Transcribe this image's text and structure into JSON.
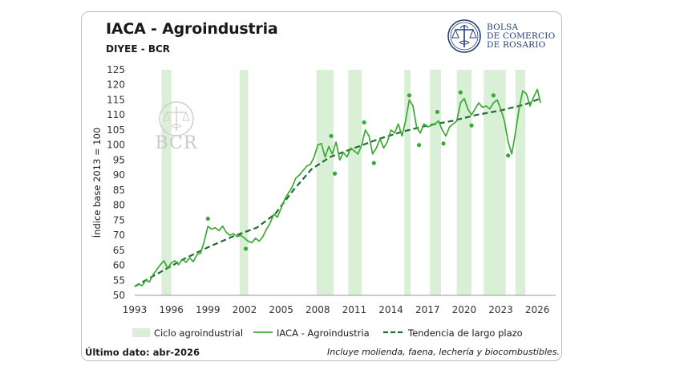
{
  "header": {
    "title": "IACA - Agroindustria",
    "subtitle": "DIYEE - BCR"
  },
  "logo": {
    "line1": "BOLSA",
    "line2": "DE COMERCIO",
    "line3": "DE ROSARIO",
    "color": "#1f3f73"
  },
  "watermark": "BCR",
  "footer": {
    "last_data": "Último dato: abr-2026",
    "note": "Incluye molienda, faena, lechería y biocombustibles."
  },
  "colors": {
    "line": "#3aaa35",
    "trend": "#1f6b34",
    "band": "#d9efd6",
    "dots": "#3aaa35"
  },
  "chart_data": {
    "type": "line",
    "title": "IACA - Agroindustria",
    "subtitle": "DIYEE - BCR",
    "ylabel": "Índice base 2013 = 100",
    "xlabel": "",
    "xlim": [
      1993,
      2027.5
    ],
    "ylim": [
      50,
      125
    ],
    "x_ticks": [
      1993,
      1996,
      1999,
      2002,
      2005,
      2008,
      2011,
      2014,
      2017,
      2020,
      2023,
      2026
    ],
    "y_ticks": [
      50,
      55,
      60,
      65,
      70,
      75,
      80,
      85,
      90,
      95,
      100,
      105,
      110,
      115,
      120,
      125
    ],
    "grid": false,
    "legend_position": "bottom",
    "legend": [
      "Ciclo agroindustrial",
      "IACA - Agroindustria",
      "Tendencia de largo plazo"
    ],
    "cycle_bands": [
      [
        1995.2,
        1996.0
      ],
      [
        2001.6,
        2002.3
      ],
      [
        2007.9,
        2009.3
      ],
      [
        2010.5,
        2011.6
      ],
      [
        2015.1,
        2015.6
      ],
      [
        2017.2,
        2018.1
      ],
      [
        2019.4,
        2020.6
      ],
      [
        2021.6,
        2023.4
      ],
      [
        2024.2,
        2025.0
      ]
    ],
    "series": [
      {
        "name": "IACA - Agroindustria",
        "x": [
          1993.0,
          1993.3,
          1993.6,
          1993.9,
          1994.2,
          1994.5,
          1994.8,
          1995.1,
          1995.4,
          1995.7,
          1996.0,
          1996.3,
          1996.6,
          1996.9,
          1997.2,
          1997.5,
          1997.8,
          1998.1,
          1998.4,
          1998.7,
          1999.0,
          1999.3,
          1999.6,
          1999.9,
          2000.2,
          2000.5,
          2000.8,
          2001.1,
          2001.4,
          2001.7,
          2002.0,
          2002.3,
          2002.6,
          2002.9,
          2003.2,
          2003.5,
          2003.8,
          2004.1,
          2004.4,
          2004.7,
          2005.0,
          2005.3,
          2005.6,
          2005.9,
          2006.2,
          2006.5,
          2006.8,
          2007.1,
          2007.4,
          2007.7,
          2008.0,
          2008.3,
          2008.6,
          2008.9,
          2009.2,
          2009.5,
          2009.8,
          2010.1,
          2010.4,
          2010.7,
          2011.0,
          2011.3,
          2011.6,
          2011.9,
          2012.2,
          2012.5,
          2012.8,
          2013.1,
          2013.4,
          2013.7,
          2014.0,
          2014.3,
          2014.6,
          2014.9,
          2015.2,
          2015.5,
          2015.8,
          2016.1,
          2016.4,
          2016.7,
          2017.0,
          2017.3,
          2017.6,
          2017.9,
          2018.2,
          2018.5,
          2018.8,
          2019.1,
          2019.4,
          2019.7,
          2020.0,
          2020.3,
          2020.6,
          2020.9,
          2021.2,
          2021.5,
          2021.8,
          2022.1,
          2022.4,
          2022.7,
          2023.0,
          2023.3,
          2023.6,
          2023.9,
          2024.2,
          2024.5,
          2024.8,
          2025.1,
          2025.4,
          2025.7,
          2026.0,
          2026.25
        ],
        "values": [
          53.0,
          53.8,
          53.2,
          55.0,
          54.5,
          56.8,
          58.5,
          60.2,
          61.5,
          59.0,
          60.8,
          61.5,
          60.2,
          62.0,
          61.0,
          62.5,
          61.2,
          63.5,
          64.0,
          68.0,
          73.0,
          72.0,
          72.5,
          71.5,
          73.0,
          71.0,
          70.0,
          70.5,
          69.5,
          70.0,
          69.0,
          68.0,
          67.5,
          69.0,
          68.0,
          69.5,
          72.0,
          74.0,
          77.0,
          76.0,
          79.0,
          82.0,
          84.0,
          86.0,
          89.0,
          90.0,
          91.5,
          93.0,
          93.5,
          96.0,
          100.0,
          100.5,
          96.0,
          99.5,
          97.0,
          101.0,
          95.0,
          97.5,
          96.0,
          99.0,
          98.0,
          97.0,
          100.0,
          105.0,
          103.0,
          97.0,
          99.0,
          102.0,
          99.0,
          101.0,
          105.0,
          104.0,
          107.0,
          103.0,
          108.0,
          115.0,
          113.0,
          106.0,
          104.0,
          107.0,
          106.0,
          106.5,
          107.0,
          108.0,
          105.0,
          103.0,
          106.0,
          107.0,
          108.0,
          114.0,
          115.5,
          112.0,
          110.0,
          112.0,
          114.0,
          112.5,
          113.0,
          112.0,
          114.0,
          115.0,
          112.0,
          108.0,
          101.0,
          97.0,
          104.0,
          112.0,
          118.0,
          117.0,
          113.0,
          116.0,
          118.5,
          114.0
        ]
      },
      {
        "name": "Tendencia de largo plazo",
        "x": [
          1993.0,
          1995.0,
          1997.0,
          1999.0,
          2001.0,
          2003.0,
          2004.5,
          2006.0,
          2007.5,
          2009.0,
          2011.0,
          2013.0,
          2015.0,
          2017.0,
          2019.0,
          2021.0,
          2023.0,
          2025.0,
          2026.25
        ],
        "values": [
          53.0,
          57.5,
          62.0,
          66.0,
          69.5,
          72.5,
          77.0,
          85.0,
          92.0,
          96.0,
          99.0,
          102.0,
          104.5,
          106.5,
          108.0,
          110.0,
          111.5,
          113.5,
          115.5
        ]
      },
      {
        "name": "",
        "type": "scatter",
        "x": [
          1999.0,
          2002.1,
          2009.1,
          2009.4,
          2011.8,
          2012.6,
          2015.5,
          2016.3,
          2017.8,
          2018.3,
          2019.7,
          2020.6,
          2022.4,
          2023.6
        ],
        "values": [
          75.5,
          65.5,
          103.0,
          90.5,
          107.5,
          94.0,
          116.5,
          100.0,
          111.0,
          100.5,
          117.5,
          106.5,
          116.5,
          96.5
        ]
      }
    ]
  }
}
